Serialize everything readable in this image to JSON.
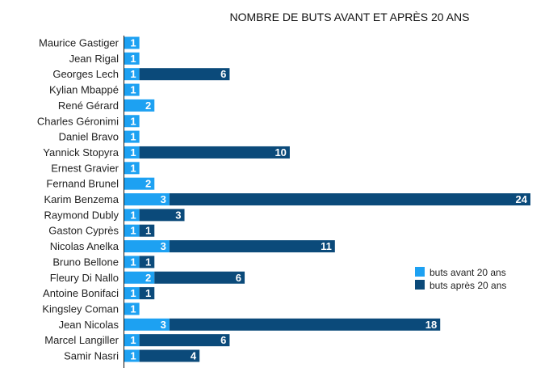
{
  "chart_data": {
    "type": "bar",
    "orientation": "horizontal",
    "stacked": true,
    "title": "NOMBRE DE BUTS AVANT ET APRÈS 20 ANS",
    "categories": [
      "Maurice Gastiger",
      "Jean Rigal",
      "Georges Lech",
      "Kylian Mbappé",
      "René Gérard",
      "Charles Géronimi",
      "Daniel Bravo",
      "Yannick Stopyra",
      "Ernest Gravier",
      "Fernand Brunel",
      "Karim Benzema",
      "Raymond Dubly",
      "Gaston Cyprès",
      "Nicolas Anelka",
      "Bruno Bellone",
      "Fleury Di Nallo",
      "Antoine Bonifaci",
      "Kingsley Coman",
      "Jean Nicolas",
      "Marcel Langiller",
      "Samir Nasri"
    ],
    "series": [
      {
        "name": "buts avant 20 ans",
        "color": "#1da1f2",
        "values": [
          1,
          1,
          1,
          1,
          2,
          1,
          1,
          1,
          1,
          2,
          3,
          1,
          1,
          3,
          1,
          2,
          1,
          1,
          3,
          1,
          1
        ]
      },
      {
        "name": "buts après 20 ans",
        "color": "#0b4a7a",
        "values": [
          null,
          null,
          6,
          null,
          null,
          null,
          null,
          10,
          null,
          null,
          24,
          3,
          1,
          11,
          1,
          6,
          1,
          null,
          18,
          6,
          4
        ]
      }
    ],
    "xlim": [
      0,
      27
    ],
    "grid": false,
    "legend": "right"
  }
}
